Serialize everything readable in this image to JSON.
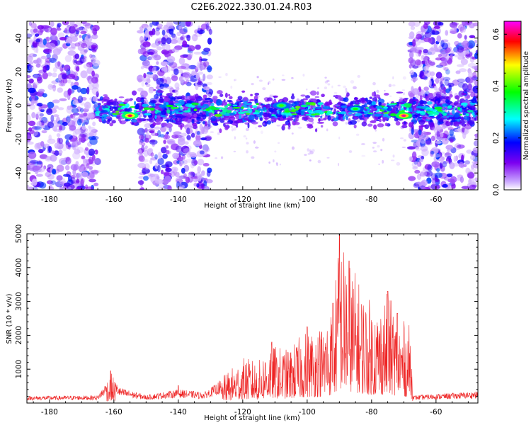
{
  "title": "C2E6.2022.330.01.24.R03",
  "chart_data": [
    {
      "type": "heatmap",
      "title": "C2E6.2022.330.01.24.R03",
      "xlabel": "Height of straight line (km)",
      "ylabel": "Frequency (Hz)",
      "xlim": [
        -187,
        -47
      ],
      "ylim": [
        -50,
        50
      ],
      "xticks": [
        -180,
        -160,
        -140,
        -120,
        -100,
        -80,
        -60
      ],
      "yticks": [
        -40,
        -20,
        0,
        20,
        40
      ],
      "colorbar": {
        "label": "Normalized spectral amplitude",
        "range": [
          0.0,
          0.65
        ],
        "ticks": [
          0.0,
          0.2,
          0.4,
          0.6
        ],
        "colors": [
          "#ffffff",
          "#7c00f0",
          "#0000ff",
          "#00ffff",
          "#00ff00",
          "#ffff00",
          "#ff0000",
          "#ff00ff"
        ]
      },
      "features": {
        "band_center_hz": -3,
        "band_halfwidth_hz": 6,
        "noise_regions_km": [
          [
            -187,
            -165
          ],
          [
            -152,
            -130
          ],
          [
            -68,
            -47
          ]
        ],
        "gap_regions_km": [
          [
            -130,
            -68
          ]
        ],
        "hotspots": [
          {
            "x": -155,
            "y": -6,
            "value": 0.6
          },
          {
            "x": -70,
            "y": -6,
            "value": 0.62
          },
          {
            "x": -108,
            "y": 0,
            "value": 0.4
          },
          {
            "x": -85,
            "y": -2,
            "value": 0.38
          }
        ]
      }
    },
    {
      "type": "line",
      "xlabel": "Height of straight line (km)",
      "ylabel": "SNR (10 * v/v)",
      "xlim": [
        -187,
        -47
      ],
      "ylim": [
        0,
        5000
      ],
      "xticks": [
        -180,
        -160,
        -140,
        -120,
        -100,
        -80,
        -60
      ],
      "yticks": [
        1000,
        2000,
        3000,
        4000,
        5000
      ],
      "color": "#ee2222",
      "envelope": [
        {
          "x": -187,
          "y": 230
        },
        {
          "x": -165,
          "y": 250
        },
        {
          "x": -161,
          "y": 900
        },
        {
          "x": -158,
          "y": 500
        },
        {
          "x": -150,
          "y": 260
        },
        {
          "x": -140,
          "y": 450
        },
        {
          "x": -132,
          "y": 350
        },
        {
          "x": -126,
          "y": 800
        },
        {
          "x": -120,
          "y": 1350
        },
        {
          "x": -115,
          "y": 1250
        },
        {
          "x": -112,
          "y": 1750
        },
        {
          "x": -106,
          "y": 1600
        },
        {
          "x": -100,
          "y": 2200
        },
        {
          "x": -96,
          "y": 2300
        },
        {
          "x": -92,
          "y": 2900
        },
        {
          "x": -90,
          "y": 5000
        },
        {
          "x": -86,
          "y": 4100
        },
        {
          "x": -82,
          "y": 3200
        },
        {
          "x": -78,
          "y": 2900
        },
        {
          "x": -75,
          "y": 3300
        },
        {
          "x": -72,
          "y": 2600
        },
        {
          "x": -68,
          "y": 2300
        },
        {
          "x": -67,
          "y": 250
        },
        {
          "x": -60,
          "y": 300
        },
        {
          "x": -47,
          "y": 380
        }
      ],
      "peaks": [
        {
          "x": -161,
          "y": 950
        },
        {
          "x": -140,
          "y": 520
        },
        {
          "x": -111,
          "y": 1800
        },
        {
          "x": -100,
          "y": 2250
        },
        {
          "x": -92,
          "y": 2950
        },
        {
          "x": -90,
          "y": 5000
        },
        {
          "x": -87,
          "y": 4200
        },
        {
          "x": -75,
          "y": 3300
        },
        {
          "x": -72,
          "y": 2650
        }
      ]
    }
  ]
}
